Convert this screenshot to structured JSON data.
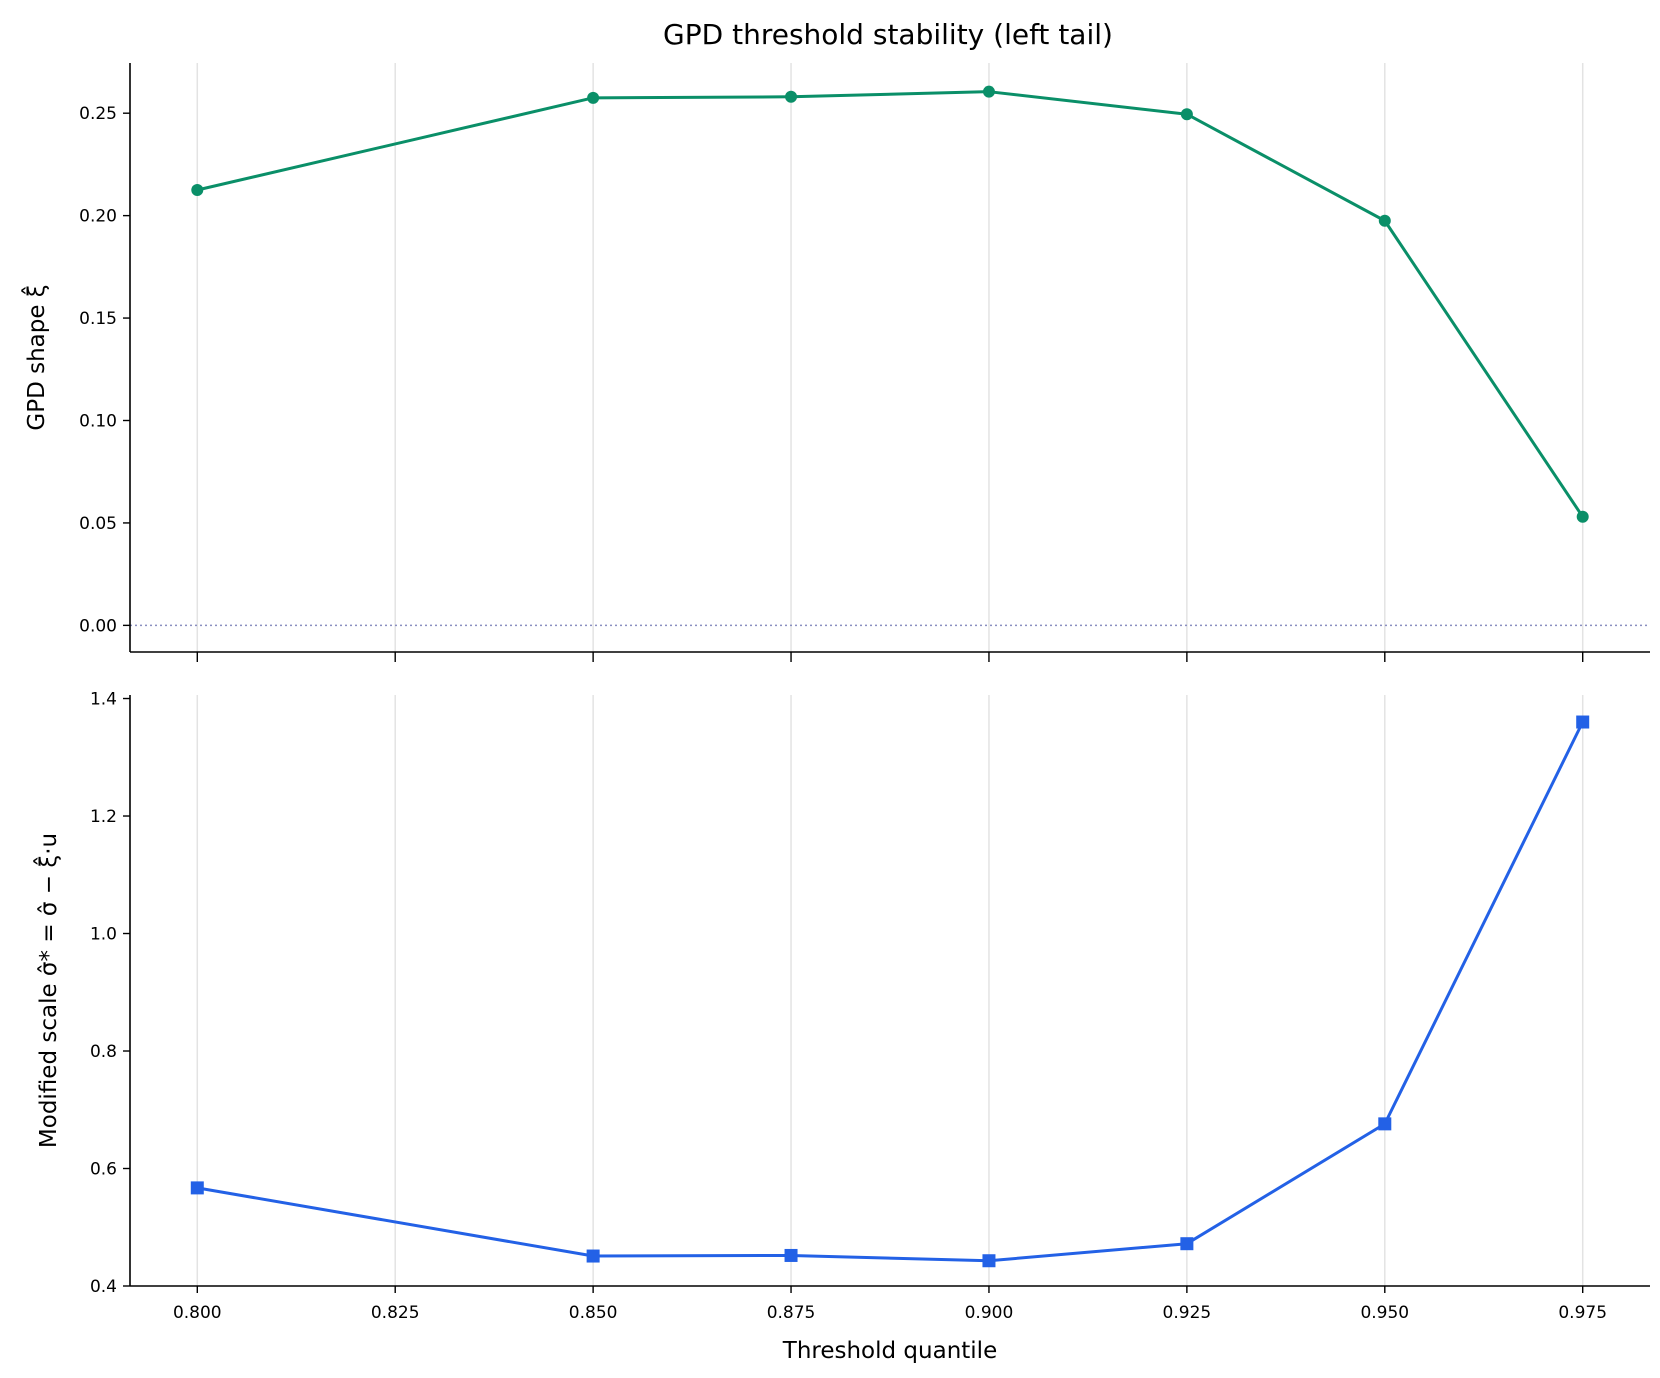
{
  "figure": {
    "title": "GPD threshold stability (left tail)"
  },
  "chart_data": [
    {
      "type": "line",
      "panel": "top",
      "x": [
        0.8,
        0.85,
        0.875,
        0.9,
        0.925,
        0.95,
        0.975
      ],
      "series": [
        {
          "values": [
            0.2125,
            0.2575,
            0.258,
            0.2605,
            0.2495,
            0.1975,
            0.053
          ],
          "color": "#0a8f68",
          "marker": "circle"
        }
      ],
      "xlabel": "",
      "ylabel": "GPD shape ξ̂",
      "xlim": [
        0.7915,
        0.9835
      ],
      "ylim": [
        -0.013,
        0.2745
      ],
      "yticks": [
        0.0,
        0.05,
        0.1,
        0.15,
        0.2,
        0.25
      ],
      "ytick_labels": [
        "0.00",
        "0.05",
        "0.10",
        "0.15",
        "0.20",
        "0.25"
      ],
      "xticks": [
        0.8,
        0.825,
        0.85,
        0.875,
        0.9,
        0.925,
        0.95,
        0.975
      ],
      "reference_line": {
        "y": 0.0,
        "color": "#8a8fc0",
        "style": "dotted"
      },
      "grid": "x",
      "grid_color": "#e3e3e3"
    },
    {
      "type": "line",
      "panel": "bottom",
      "x": [
        0.8,
        0.85,
        0.875,
        0.9,
        0.925,
        0.95,
        0.975
      ],
      "series": [
        {
          "values": [
            0.567,
            0.451,
            0.452,
            0.443,
            0.472,
            0.676,
            1.36
          ],
          "color": "#2361e6",
          "marker": "square"
        }
      ],
      "xlabel": "Threshold quantile",
      "ylabel": "Modified scale σ̂* = σ̂ − ξ̂·u",
      "xlim": [
        0.7915,
        0.9835
      ],
      "ylim": [
        0.4,
        1.406
      ],
      "xticks": [
        0.8,
        0.825,
        0.85,
        0.875,
        0.9,
        0.925,
        0.95,
        0.975
      ],
      "xtick_labels": [
        "0.800",
        "0.825",
        "0.850",
        "0.875",
        "0.900",
        "0.925",
        "0.950",
        "0.975"
      ],
      "yticks": [
        0.4,
        0.6,
        0.8,
        1.0,
        1.2,
        1.4
      ],
      "ytick_labels": [
        "0.4",
        "0.6",
        "0.8",
        "1.0",
        "1.2",
        "1.4"
      ],
      "grid": "x",
      "grid_color": "#e3e3e3"
    }
  ]
}
